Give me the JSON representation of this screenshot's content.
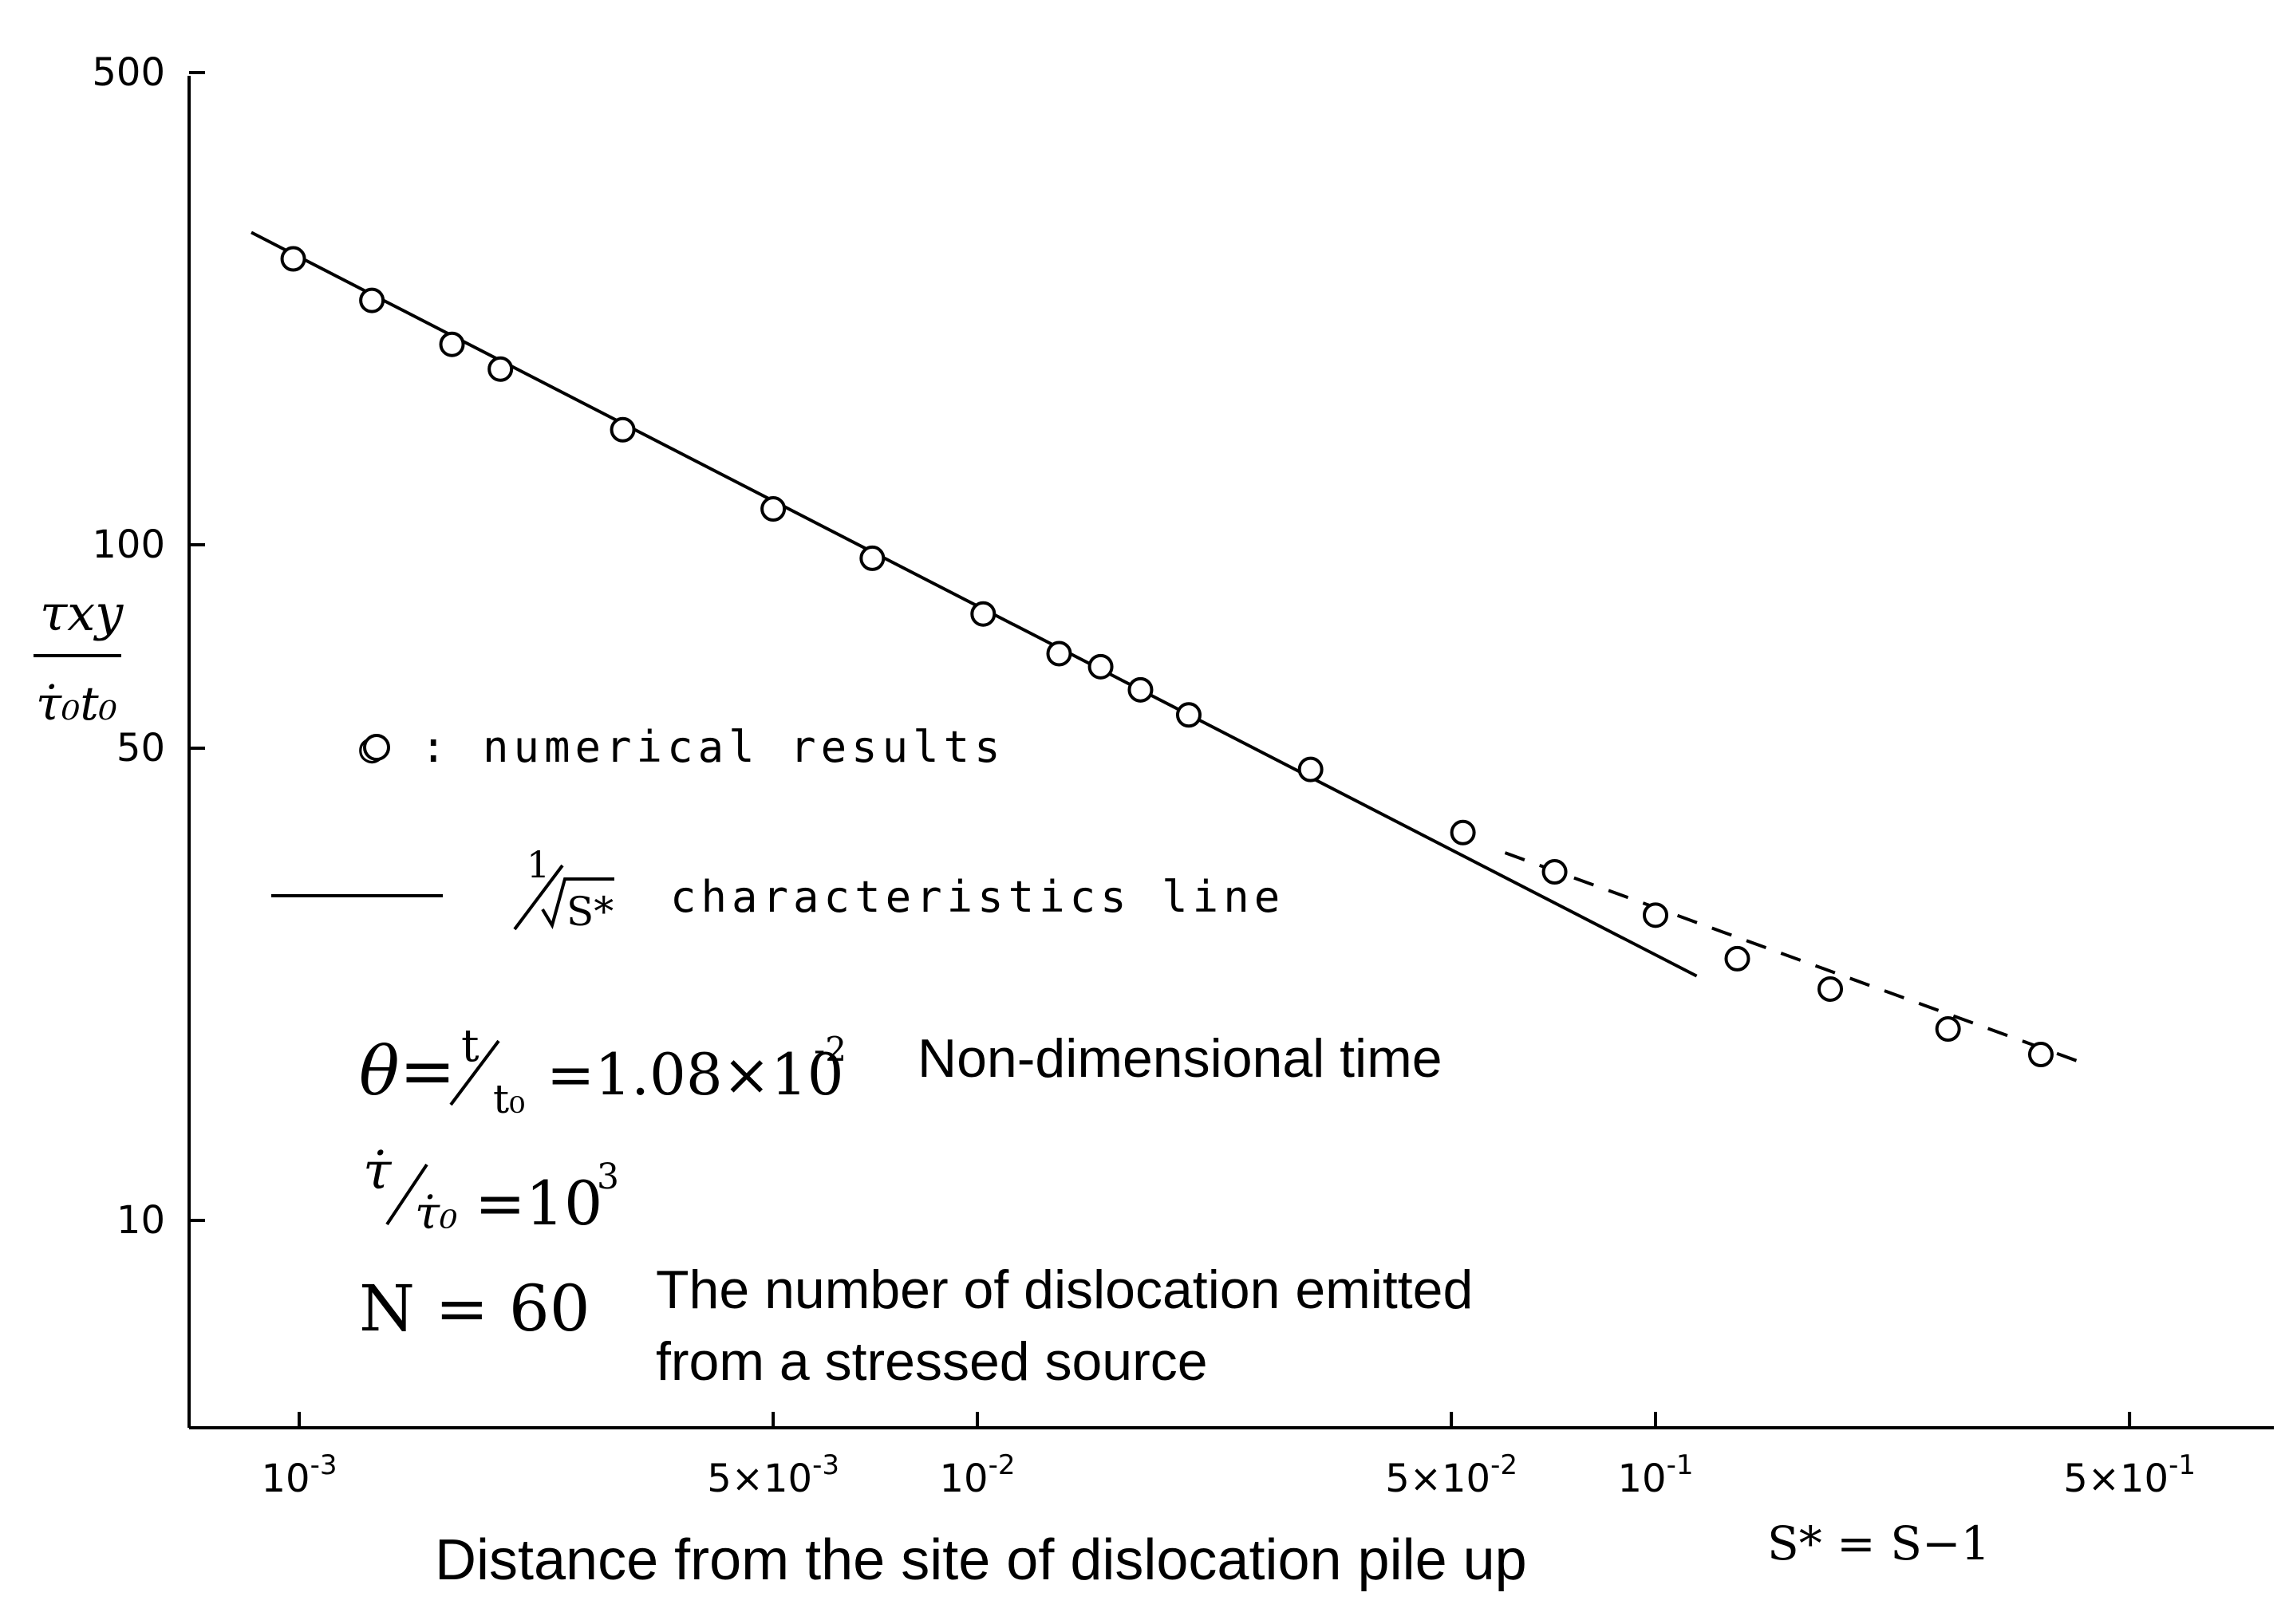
{
  "chart_data": {
    "type": "scatter",
    "x_scale": "log",
    "y_scale": "log",
    "xlim": [
      0.0006,
      0.9
    ],
    "ylim": [
      5,
      500
    ],
    "x_ticks": [
      {
        "value": 0.001,
        "label": "10",
        "sup": "-3"
      },
      {
        "value": 0.005,
        "label": "5×10",
        "sup": "-3"
      },
      {
        "value": 0.01,
        "label": "10",
        "sup": "-2"
      },
      {
        "value": 0.05,
        "label": "5×10",
        "sup": "-2"
      },
      {
        "value": 0.1,
        "label": "10",
        "sup": "-1"
      },
      {
        "value": 0.5,
        "label": "5×10",
        "sup": "-1"
      }
    ],
    "y_ticks": [
      {
        "value": 10,
        "label": "10"
      },
      {
        "value": 50,
        "label": "50"
      },
      {
        "value": 100,
        "label": "100"
      },
      {
        "value": 500,
        "label": "500"
      }
    ],
    "ylabel_num": "τxy",
    "ylabel_den": "τ̇₀t₀",
    "xlabel_symbol": "S* = S−1",
    "xlabel": "Distance from the site of dislocation pile up",
    "series": [
      {
        "name": "numerical results",
        "marker": "open-circle",
        "x": [
          0.00098,
          0.00128,
          0.00168,
          0.00198,
          0.003,
          0.005,
          0.007,
          0.0102,
          0.0132,
          0.0152,
          0.0174,
          0.0205,
          0.031,
          0.052,
          0.071,
          0.1,
          0.132,
          0.181,
          0.27,
          0.37
        ],
        "y": [
          265,
          230,
          198,
          182,
          148,
          113,
          95.5,
          79,
          69,
          66,
          61,
          56,
          46.5,
          37.5,
          32.8,
          28.3,
          24.4,
          22,
          19.2,
          17.6
        ]
      }
    ],
    "fit_solid": {
      "x": [
        0.00085,
        0.115
      ],
      "y": [
        290,
        23
      ]
    },
    "fit_dashed": {
      "x": [
        0.06,
        0.42
      ],
      "y": [
        35,
        17.2
      ]
    }
  },
  "legend": {
    "marker_label": "○ :",
    "results_label": "numerical results",
    "line_num": "1",
    "line_den": "S*",
    "line_label": "characteristics  line"
  },
  "params": {
    "theta_prefix": "θ=",
    "theta_num": "t",
    "theta_den": "t₀",
    "theta_value": "=1.08×10",
    "theta_exp": "-2",
    "theta_note": "Non-dimensional time",
    "rate_num": "τ̇",
    "rate_den": "τ̇₀",
    "rate_value": "=10",
    "rate_exp": "3",
    "n_label": "N = 60",
    "n_note_line1": "The number of dislocation emitted",
    "n_note_line2": "from a stressed source"
  }
}
